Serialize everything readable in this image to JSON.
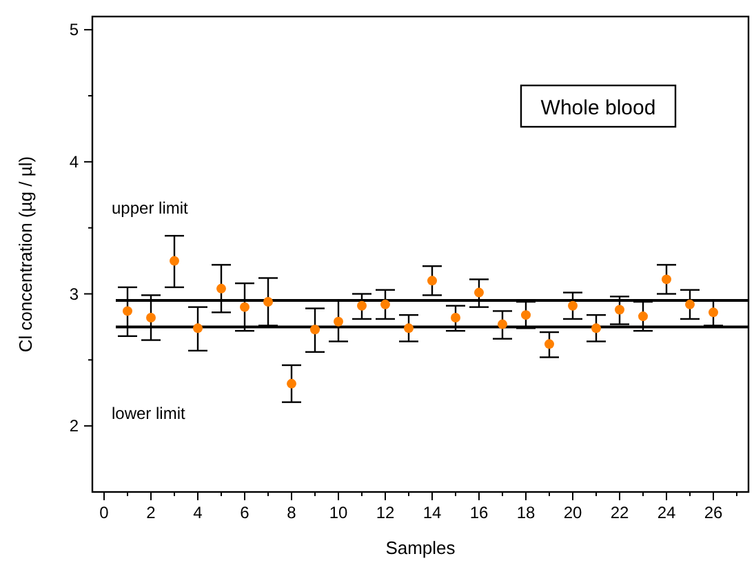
{
  "chart_data": {
    "type": "scatter",
    "xlabel": "Samples",
    "ylabel": "Cl concentration (µg / µl)",
    "x": [
      1,
      2,
      3,
      4,
      5,
      6,
      7,
      8,
      9,
      10,
      11,
      12,
      13,
      14,
      15,
      16,
      17,
      18,
      19,
      20,
      21,
      22,
      23,
      24,
      25,
      26
    ],
    "series": [
      {
        "color": "#ff8000",
        "values": [
          2.87,
          2.82,
          3.25,
          2.74,
          3.04,
          2.9,
          2.94,
          2.32,
          2.73,
          2.79,
          2.91,
          2.92,
          2.74,
          3.1,
          2.82,
          3.01,
          2.77,
          2.84,
          2.62,
          2.91,
          2.74,
          2.88,
          2.83,
          3.11,
          2.92,
          2.86
        ],
        "errors": [
          [
            2.68,
            3.05
          ],
          [
            2.65,
            2.99
          ],
          [
            3.05,
            3.44
          ],
          [
            2.57,
            2.9
          ],
          [
            2.86,
            3.22
          ],
          [
            2.72,
            3.08
          ],
          [
            2.76,
            3.12
          ],
          [
            2.18,
            2.46
          ],
          [
            2.56,
            2.89
          ],
          [
            2.64,
            2.95
          ],
          [
            2.81,
            3.0
          ],
          [
            2.81,
            3.03
          ],
          [
            2.64,
            2.84
          ],
          [
            2.99,
            3.21
          ],
          [
            2.72,
            2.91
          ],
          [
            2.9,
            3.11
          ],
          [
            2.66,
            2.87
          ],
          [
            2.74,
            2.94
          ],
          [
            2.52,
            2.71
          ],
          [
            2.81,
            3.01
          ],
          [
            2.64,
            2.84
          ],
          [
            2.77,
            2.98
          ],
          [
            2.72,
            2.94
          ],
          [
            3.0,
            3.22
          ],
          [
            2.81,
            3.03
          ],
          [
            2.76,
            2.95
          ]
        ]
      }
    ],
    "xlim": [
      -0.5,
      27.5
    ],
    "ylim": [
      1.5,
      5.1
    ],
    "xticks": [
      0,
      {
        "value": 1,
        "label": null
      },
      2,
      {
        "value": 3,
        "label": null
      },
      4,
      {
        "value": 5,
        "label": null
      },
      6,
      {
        "value": 7,
        "label": null
      },
      8,
      {
        "value": 9,
        "label": null
      },
      10,
      {
        "value": 11,
        "label": null
      },
      12,
      {
        "value": 13,
        "label": null
      },
      14,
      {
        "value": 15,
        "label": null
      },
      16,
      {
        "value": 17,
        "label": null
      },
      18,
      {
        "value": 19,
        "label": null
      },
      20,
      {
        "value": 21,
        "label": null
      },
      22,
      {
        "value": 23,
        "label": null
      },
      24,
      {
        "value": 25,
        "label": null
      },
      26,
      {
        "value": 27,
        "label": null
      }
    ],
    "yticks": [
      2,
      {
        "value": 2.5,
        "label": null
      },
      3,
      {
        "value": 3.5,
        "label": null
      },
      4,
      {
        "value": 4.5,
        "label": null
      },
      5
    ],
    "ref_lines": [
      {
        "axis": "y",
        "value": 2.95,
        "color": "#000000"
      },
      {
        "axis": "y",
        "value": 2.75,
        "color": "#000000"
      }
    ],
    "annotations": [
      "Whole blood",
      "upper limit",
      "lower limit"
    ],
    "marker": "circle",
    "grid": false,
    "legend": false
  }
}
